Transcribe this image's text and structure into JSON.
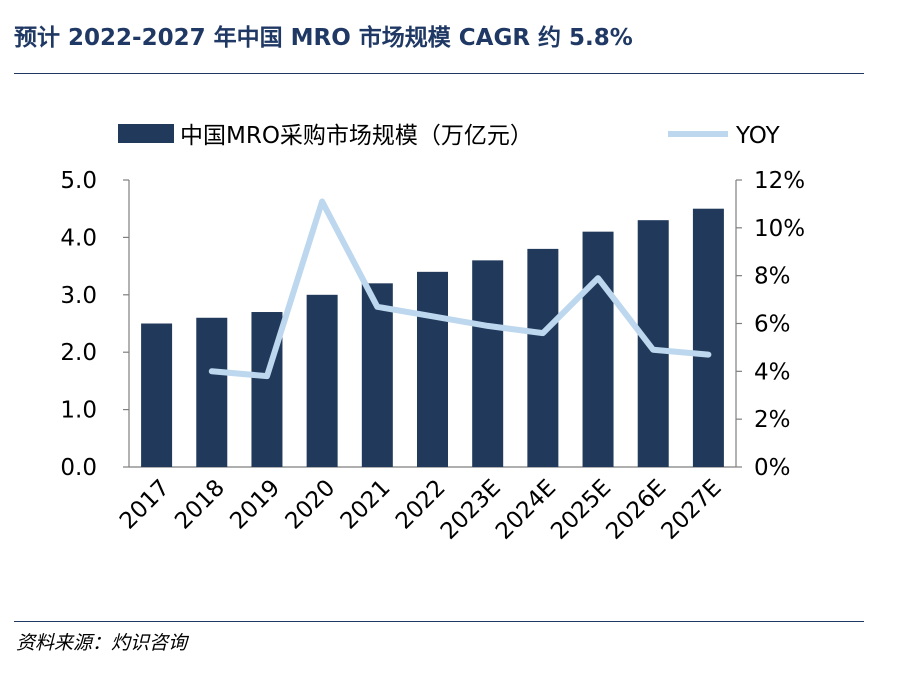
{
  "header": {
    "title": "预计 2022-2027 年中国 MRO 市场规模 CAGR 约 5.8%"
  },
  "footer": {
    "source": "资料来源：灼识咨询"
  },
  "colors": {
    "bar": "#213a5c",
    "line": "#bdd7ee",
    "title": "#1f3864",
    "axis": "#7f7f7f"
  },
  "chart_data": {
    "type": "bar",
    "categories": [
      "2017",
      "2018",
      "2019",
      "2020",
      "2021",
      "2022",
      "2023E",
      "2024E",
      "2025E",
      "2026E",
      "2027E"
    ],
    "series": [
      {
        "name": "中国MRO采购市场规模（万亿元）",
        "type": "bar",
        "axis": "left",
        "values": [
          2.5,
          2.6,
          2.7,
          3.0,
          3.2,
          3.4,
          3.6,
          3.8,
          4.1,
          4.3,
          4.5
        ]
      },
      {
        "name": "YOY",
        "type": "line",
        "axis": "right",
        "values": [
          null,
          4.0,
          3.8,
          11.1,
          6.7,
          6.3,
          5.9,
          5.6,
          7.9,
          4.9,
          4.7
        ]
      }
    ],
    "y_left": {
      "min": 0,
      "max": 5,
      "ticks": [
        "0.0",
        "1.0",
        "2.0",
        "3.0",
        "4.0",
        "5.0"
      ]
    },
    "y_right": {
      "min": 0,
      "max": 12,
      "ticks": [
        "0%",
        "2%",
        "4%",
        "6%",
        "8%",
        "10%",
        "12%"
      ]
    },
    "legend": "top",
    "grid": false
  }
}
